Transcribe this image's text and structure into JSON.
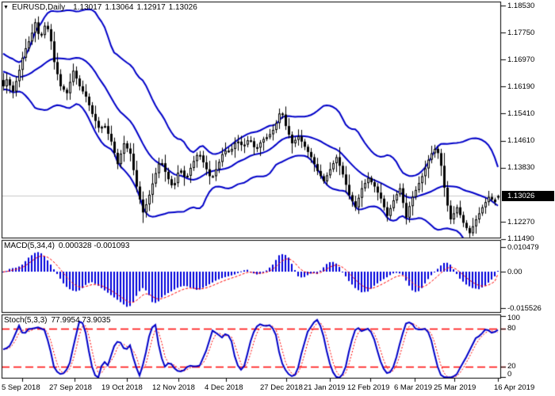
{
  "header": {
    "marker": "▼",
    "symbol_period": "EURUSD,Daily",
    "open": "1.13017",
    "high": "1.13064",
    "low": "1.12917",
    "close": "1.13026"
  },
  "price_axis": {
    "ticks": [
      "1.18530",
      "1.17750",
      "1.16970",
      "1.16190",
      "1.15410",
      "1.14610",
      "1.13830",
      "1.12270",
      "1.11490"
    ],
    "current": "1.13026"
  },
  "macd_panel": {
    "label": "MACD(5,34,4)",
    "values": "0.000328 -0.001093",
    "axis": [
      "0.010479",
      "0.00",
      "-0.015526"
    ]
  },
  "stoch_panel": {
    "label": "Stoch(5,3,3)",
    "values": "77.9954 73.9035",
    "axis": [
      "100",
      "80",
      "20",
      "0"
    ]
  },
  "date_axis": {
    "labels": [
      "5 Sep 2018",
      "27 Sep 2018",
      "19 Oct 2018",
      "12 Nov 2018",
      "4 Dec 2018",
      "27 Dec 2018",
      "21 Jan 2019",
      "12 Feb 2019",
      "6 Mar 2019",
      "25 Mar 2019",
      "16 Apr 2019"
    ]
  },
  "chart_data": {
    "type": "candlestick",
    "symbol": "EURUSD",
    "timeframe": "Daily",
    "title": "EURUSD,Daily 1.13017 1.13064 1.12917 1.13026",
    "price_panel": {
      "ylim": [
        1.118,
        1.1865
      ],
      "axis_ticks": [
        1.1853,
        1.1775,
        1.1697,
        1.1619,
        1.1541,
        1.1461,
        1.1383,
        1.1227,
        1.1149
      ],
      "last_close": 1.13026,
      "last_ohlc": {
        "open": 1.13017,
        "high": 1.13064,
        "low": 1.12917,
        "close": 1.13026
      },
      "close_anchors": [
        [
          0,
          1.16
        ],
        [
          8,
          1.164
        ],
        [
          16,
          1.1605
        ],
        [
          22,
          1.165
        ],
        [
          30,
          1.172
        ],
        [
          38,
          1.176
        ],
        [
          44,
          1.1805
        ],
        [
          50,
          1.1755
        ],
        [
          56,
          1.1795
        ],
        [
          62,
          1.178
        ],
        [
          68,
          1.169
        ],
        [
          76,
          1.162
        ],
        [
          84,
          1.16
        ],
        [
          92,
          1.1665
        ],
        [
          100,
          1.162
        ],
        [
          108,
          1.159
        ],
        [
          116,
          1.154
        ],
        [
          124,
          1.15
        ],
        [
          132,
          1.1505
        ],
        [
          140,
          1.146
        ],
        [
          148,
          1.1395
        ],
        [
          156,
          1.1455
        ],
        [
          164,
          1.1425
        ],
        [
          172,
          1.133
        ],
        [
          180,
          1.1255
        ],
        [
          186,
          1.129
        ],
        [
          194,
          1.1355
        ],
        [
          202,
          1.141
        ],
        [
          210,
          1.136
        ],
        [
          218,
          1.1325
        ],
        [
          226,
          1.1385
        ],
        [
          234,
          1.135
        ],
        [
          242,
          1.1395
        ],
        [
          250,
          1.143
        ],
        [
          258,
          1.139
        ],
        [
          266,
          1.135
        ],
        [
          274,
          1.139
        ],
        [
          282,
          1.1435
        ],
        [
          290,
          1.143
        ],
        [
          298,
          1.1465
        ],
        [
          306,
          1.1445
        ],
        [
          314,
          1.147
        ],
        [
          322,
          1.1435
        ],
        [
          330,
          1.1465
        ],
        [
          338,
          1.1475
        ],
        [
          346,
          1.15
        ],
        [
          354,
          1.1555
        ],
        [
          360,
          1.1505
        ],
        [
          368,
          1.1455
        ],
        [
          376,
          1.1475
        ],
        [
          384,
          1.1445
        ],
        [
          392,
          1.1415
        ],
        [
          400,
          1.1375
        ],
        [
          408,
          1.1345
        ],
        [
          416,
          1.138
        ],
        [
          424,
          1.1415
        ],
        [
          432,
          1.1365
        ],
        [
          440,
          1.1305
        ],
        [
          448,
          1.127
        ],
        [
          456,
          1.1325
        ],
        [
          464,
          1.1355
        ],
        [
          472,
          1.133
        ],
        [
          480,
          1.1295
        ],
        [
          488,
          1.1245
        ],
        [
          496,
          1.129
        ],
        [
          504,
          1.1325
        ],
        [
          512,
          1.124
        ],
        [
          518,
          1.129
        ],
        [
          526,
          1.133
        ],
        [
          534,
          1.137
        ],
        [
          542,
          1.142
        ],
        [
          550,
          1.1445
        ],
        [
          556,
          1.139
        ],
        [
          562,
          1.1295
        ],
        [
          568,
          1.1235
        ],
        [
          576,
          1.127
        ],
        [
          584,
          1.1225
        ],
        [
          592,
          1.1195
        ],
        [
          600,
          1.1235
        ],
        [
          608,
          1.127
        ],
        [
          616,
          1.13
        ],
        [
          624,
          1.1285
        ],
        [
          628,
          1.13026
        ]
      ],
      "bollinger": {
        "period": 20,
        "deviation": 2
      }
    },
    "macd": {
      "params": [
        5,
        34,
        4
      ],
      "main_last": 0.000328,
      "signal_last": -0.001093,
      "axis_ticks": [
        0.010479,
        0.0,
        -0.015526
      ],
      "anchors": [
        [
          0,
          0.0008
        ],
        [
          6,
          -0.0005
        ],
        [
          10,
          0.001
        ],
        [
          16,
          0.0015
        ],
        [
          22,
          0.0018
        ],
        [
          28,
          0.003
        ],
        [
          36,
          0.006
        ],
        [
          44,
          0.008
        ],
        [
          50,
          0.0085
        ],
        [
          56,
          0.0065
        ],
        [
          62,
          0.004
        ],
        [
          68,
          0.001
        ],
        [
          74,
          -0.002
        ],
        [
          82,
          -0.006
        ],
        [
          90,
          -0.008
        ],
        [
          98,
          -0.0085
        ],
        [
          104,
          -0.007
        ],
        [
          110,
          -0.005
        ],
        [
          116,
          -0.0045
        ],
        [
          124,
          -0.006
        ],
        [
          132,
          -0.008
        ],
        [
          140,
          -0.01
        ],
        [
          148,
          -0.012
        ],
        [
          156,
          -0.014
        ],
        [
          162,
          -0.0155
        ],
        [
          168,
          -0.013
        ],
        [
          174,
          -0.009
        ],
        [
          180,
          -0.007
        ],
        [
          186,
          -0.0085
        ],
        [
          192,
          -0.013
        ],
        [
          198,
          -0.0135
        ],
        [
          204,
          -0.011
        ],
        [
          210,
          -0.0095
        ],
        [
          218,
          -0.008
        ],
        [
          226,
          -0.0065
        ],
        [
          234,
          -0.006
        ],
        [
          242,
          -0.007
        ],
        [
          250,
          -0.008
        ],
        [
          258,
          -0.0065
        ],
        [
          266,
          -0.005
        ],
        [
          274,
          -0.0035
        ],
        [
          282,
          -0.0025
        ],
        [
          290,
          -0.0018
        ],
        [
          298,
          -0.001
        ],
        [
          306,
          0.0005
        ],
        [
          312,
          0.0008
        ],
        [
          318,
          -0.0005
        ],
        [
          324,
          -0.0012
        ],
        [
          330,
          -0.0008
        ],
        [
          336,
          0.0005
        ],
        [
          344,
          0.003
        ],
        [
          352,
          0.007
        ],
        [
          358,
          0.0077
        ],
        [
          364,
          0.006
        ],
        [
          370,
          0.002
        ],
        [
          376,
          -0.002
        ],
        [
          382,
          -0.0027
        ],
        [
          388,
          -0.0015
        ],
        [
          394,
          -0.0005
        ],
        [
          400,
          -0.001
        ],
        [
          407,
          0.0015
        ],
        [
          414,
          0.004
        ],
        [
          422,
          0.0042
        ],
        [
          428,
          0.002
        ],
        [
          434,
          -0.001
        ],
        [
          440,
          -0.004
        ],
        [
          448,
          -0.007
        ],
        [
          456,
          -0.0088
        ],
        [
          464,
          -0.0085
        ],
        [
          472,
          -0.006
        ],
        [
          480,
          -0.004
        ],
        [
          488,
          -0.0024
        ],
        [
          495,
          -0.0008
        ],
        [
          502,
          -0.0004
        ],
        [
          508,
          -0.0015
        ],
        [
          514,
          -0.005
        ],
        [
          520,
          -0.008
        ],
        [
          526,
          -0.009
        ],
        [
          532,
          -0.007
        ],
        [
          538,
          -0.004
        ],
        [
          544,
          -0.0015
        ],
        [
          550,
          0.0005
        ],
        [
          557,
          0.003
        ],
        [
          562,
          0.0042
        ],
        [
          568,
          0.003
        ],
        [
          574,
          0.0
        ],
        [
          580,
          -0.003
        ],
        [
          588,
          -0.0055
        ],
        [
          596,
          -0.007
        ],
        [
          604,
          -0.0075
        ],
        [
          612,
          -0.006
        ],
        [
          618,
          -0.004
        ],
        [
          624,
          -0.002
        ],
        [
          628,
          0.000328
        ]
      ]
    },
    "stochastic": {
      "params": [
        5,
        3,
        3
      ],
      "k_last": 77.9954,
      "d_last": 73.9035,
      "levels": [
        80,
        20
      ],
      "axis_ticks": [
        100,
        80,
        20,
        0
      ],
      "k_anchors": [
        [
          0,
          42
        ],
        [
          6,
          50
        ],
        [
          10,
          48
        ],
        [
          16,
          62
        ],
        [
          24,
          85
        ],
        [
          30,
          68
        ],
        [
          34,
          79
        ],
        [
          40,
          80
        ],
        [
          48,
          82
        ],
        [
          56,
          78
        ],
        [
          62,
          55
        ],
        [
          68,
          20
        ],
        [
          74,
          8
        ],
        [
          82,
          10
        ],
        [
          88,
          26
        ],
        [
          94,
          60
        ],
        [
          100,
          91
        ],
        [
          106,
          88
        ],
        [
          112,
          45
        ],
        [
          118,
          8
        ],
        [
          124,
          3
        ],
        [
          130,
          30
        ],
        [
          136,
          22
        ],
        [
          146,
          60
        ],
        [
          152,
          58
        ],
        [
          158,
          45
        ],
        [
          164,
          54
        ],
        [
          170,
          25
        ],
        [
          176,
          6
        ],
        [
          182,
          30
        ],
        [
          190,
          80
        ],
        [
          196,
          86
        ],
        [
          202,
          40
        ],
        [
          208,
          20
        ],
        [
          214,
          28
        ],
        [
          222,
          14
        ],
        [
          230,
          12
        ],
        [
          238,
          22
        ],
        [
          246,
          20
        ],
        [
          252,
          22
        ],
        [
          260,
          45
        ],
        [
          268,
          77
        ],
        [
          274,
          72
        ],
        [
          280,
          66
        ],
        [
          286,
          74
        ],
        [
          292,
          60
        ],
        [
          298,
          25
        ],
        [
          306,
          12
        ],
        [
          312,
          40
        ],
        [
          318,
          70
        ],
        [
          326,
          88
        ],
        [
          334,
          84
        ],
        [
          342,
          86
        ],
        [
          348,
          70
        ],
        [
          354,
          30
        ],
        [
          362,
          10
        ],
        [
          368,
          5
        ],
        [
          374,
          8
        ],
        [
          380,
          40
        ],
        [
          388,
          75
        ],
        [
          396,
          90
        ],
        [
          400,
          94
        ],
        [
          406,
          80
        ],
        [
          412,
          45
        ],
        [
          418,
          15
        ],
        [
          424,
          4
        ],
        [
          430,
          2
        ],
        [
          436,
          20
        ],
        [
          442,
          55
        ],
        [
          448,
          78
        ],
        [
          452,
          81
        ],
        [
          456,
          76
        ],
        [
          460,
          78
        ],
        [
          464,
          80
        ],
        [
          470,
          72
        ],
        [
          476,
          45
        ],
        [
          482,
          20
        ],
        [
          488,
          10
        ],
        [
          494,
          12
        ],
        [
          500,
          35
        ],
        [
          506,
          65
        ],
        [
          512,
          88
        ],
        [
          518,
          91
        ],
        [
          524,
          80
        ],
        [
          530,
          78
        ],
        [
          536,
          80
        ],
        [
          542,
          72
        ],
        [
          548,
          40
        ],
        [
          554,
          10
        ],
        [
          558,
          4
        ],
        [
          564,
          3
        ],
        [
          570,
          3
        ],
        [
          576,
          8
        ],
        [
          582,
          22
        ],
        [
          588,
          35
        ],
        [
          594,
          50
        ],
        [
          600,
          65
        ],
        [
          604,
          68
        ],
        [
          610,
          75
        ],
        [
          614,
          82
        ],
        [
          618,
          73
        ],
        [
          622,
          74
        ],
        [
          626,
          76
        ],
        [
          630,
          78
        ]
      ]
    },
    "colors": {
      "background": "#FFFFFF",
      "border": "#000000",
      "bands_blue": "#0000C8",
      "histogram_blue": "#0000DC",
      "signal_red": "#FF0000",
      "candle_black": "#000000",
      "candle_up_fill": "#FFFFFF",
      "price_line_gray": "#C8C8C8",
      "tag_bg": "#000000",
      "tag_fg": "#FFFFFF"
    }
  }
}
